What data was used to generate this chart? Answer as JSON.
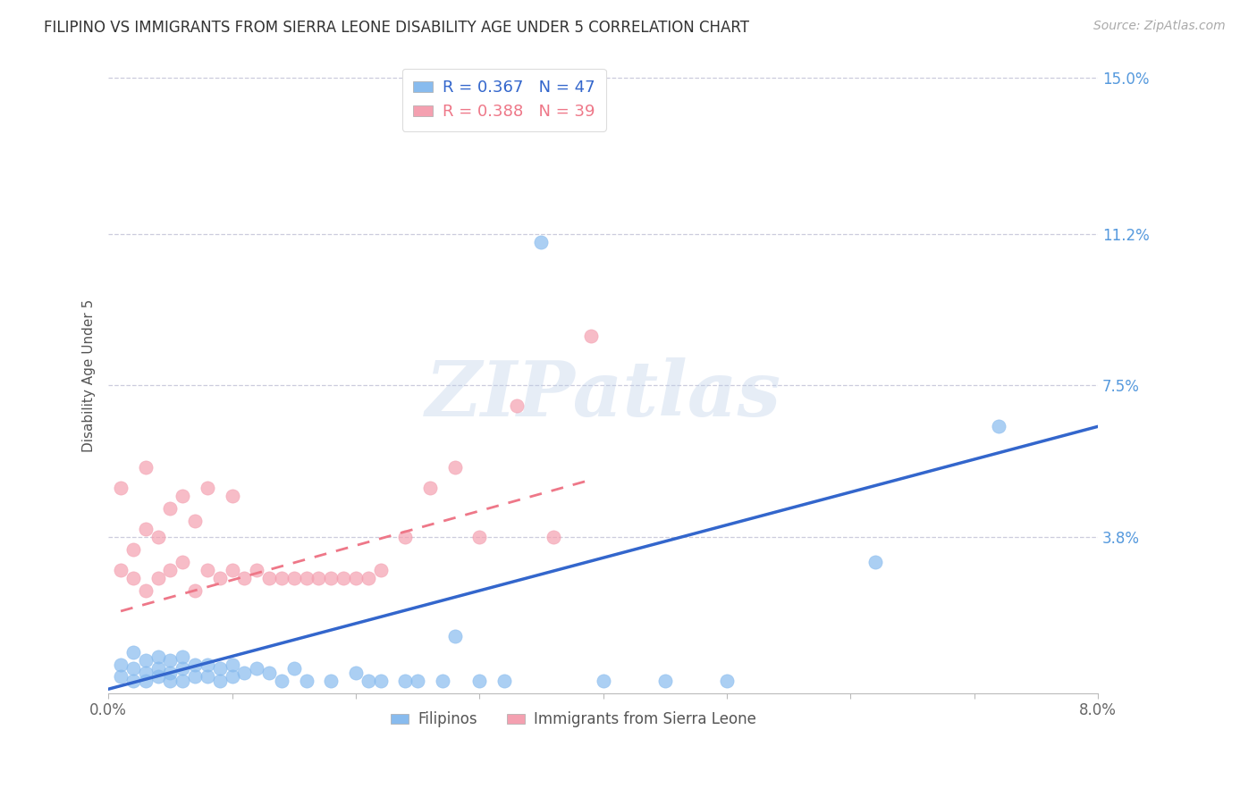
{
  "title": "FILIPINO VS IMMIGRANTS FROM SIERRA LEONE DISABILITY AGE UNDER 5 CORRELATION CHART",
  "source": "Source: ZipAtlas.com",
  "ylabel": "Disability Age Under 5",
  "xlim": [
    0.0,
    0.08
  ],
  "ylim": [
    0.0,
    0.155
  ],
  "R_filipino": 0.367,
  "N_filipino": 47,
  "R_sierraleone": 0.388,
  "N_sierraleone": 39,
  "color_filipino": "#88bbee",
  "color_sierraleone": "#f4a0b0",
  "color_trendline_filipino": "#3366cc",
  "color_trendline_sierraleone": "#ee7788",
  "watermark_text": "ZIPatlas",
  "background_color": "#ffffff",
  "grid_color": "#ccccdd",
  "ytick_pos": [
    0.038,
    0.075,
    0.112,
    0.15
  ],
  "ytick_labels": [
    "3.8%",
    "7.5%",
    "11.2%",
    "15.0%"
  ],
  "filipino_x": [
    0.001,
    0.001,
    0.002,
    0.002,
    0.002,
    0.003,
    0.003,
    0.003,
    0.004,
    0.004,
    0.004,
    0.005,
    0.005,
    0.005,
    0.006,
    0.006,
    0.006,
    0.007,
    0.007,
    0.008,
    0.008,
    0.009,
    0.009,
    0.01,
    0.01,
    0.011,
    0.012,
    0.013,
    0.014,
    0.015,
    0.016,
    0.018,
    0.02,
    0.021,
    0.022,
    0.024,
    0.025,
    0.027,
    0.028,
    0.03,
    0.032,
    0.035,
    0.04,
    0.045,
    0.05,
    0.062,
    0.072
  ],
  "filipino_y": [
    0.004,
    0.007,
    0.003,
    0.006,
    0.01,
    0.003,
    0.005,
    0.008,
    0.004,
    0.006,
    0.009,
    0.003,
    0.005,
    0.008,
    0.003,
    0.006,
    0.009,
    0.004,
    0.007,
    0.004,
    0.007,
    0.003,
    0.006,
    0.004,
    0.007,
    0.005,
    0.006,
    0.005,
    0.003,
    0.006,
    0.003,
    0.003,
    0.005,
    0.003,
    0.003,
    0.003,
    0.003,
    0.003,
    0.014,
    0.003,
    0.003,
    0.11,
    0.003,
    0.003,
    0.003,
    0.032,
    0.065
  ],
  "sierraleone_x": [
    0.001,
    0.001,
    0.002,
    0.002,
    0.003,
    0.003,
    0.003,
    0.004,
    0.004,
    0.005,
    0.005,
    0.006,
    0.006,
    0.007,
    0.007,
    0.008,
    0.008,
    0.009,
    0.01,
    0.01,
    0.011,
    0.012,
    0.013,
    0.014,
    0.015,
    0.016,
    0.017,
    0.018,
    0.019,
    0.02,
    0.021,
    0.022,
    0.024,
    0.026,
    0.028,
    0.03,
    0.033,
    0.036,
    0.039
  ],
  "sierraleone_y": [
    0.03,
    0.05,
    0.028,
    0.035,
    0.025,
    0.04,
    0.055,
    0.028,
    0.038,
    0.03,
    0.045,
    0.032,
    0.048,
    0.025,
    0.042,
    0.03,
    0.05,
    0.028,
    0.03,
    0.048,
    0.028,
    0.03,
    0.028,
    0.028,
    0.028,
    0.028,
    0.028,
    0.028,
    0.028,
    0.028,
    0.028,
    0.03,
    0.038,
    0.05,
    0.055,
    0.038,
    0.07,
    0.038,
    0.087
  ],
  "fil_trend_x": [
    0.0,
    0.08
  ],
  "fil_trend_y": [
    0.001,
    0.065
  ],
  "sl_trend_x": [
    0.001,
    0.039
  ],
  "sl_trend_y": [
    0.02,
    0.052
  ]
}
